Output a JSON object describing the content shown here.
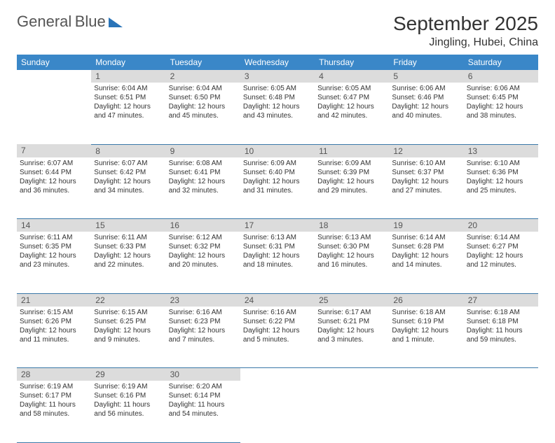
{
  "brand": {
    "name_top": "General",
    "name_bottom": "Blue"
  },
  "title": "September 2025",
  "location": "Jingling, Hubei, China",
  "colors": {
    "header_bg": "#3a87c8",
    "header_text": "#ffffff",
    "daybar_bg": "#dcdcdc",
    "daybar_text": "#555555",
    "rule": "#3a78a8",
    "brand_blue": "#2a74b8"
  },
  "weekdays": [
    "Sunday",
    "Monday",
    "Tuesday",
    "Wednesday",
    "Thursday",
    "Friday",
    "Saturday"
  ],
  "weeks": [
    [
      null,
      {
        "n": "1",
        "sr": "6:04 AM",
        "ss": "6:51 PM",
        "dl": "12 hours and 47 minutes."
      },
      {
        "n": "2",
        "sr": "6:04 AM",
        "ss": "6:50 PM",
        "dl": "12 hours and 45 minutes."
      },
      {
        "n": "3",
        "sr": "6:05 AM",
        "ss": "6:48 PM",
        "dl": "12 hours and 43 minutes."
      },
      {
        "n": "4",
        "sr": "6:05 AM",
        "ss": "6:47 PM",
        "dl": "12 hours and 42 minutes."
      },
      {
        "n": "5",
        "sr": "6:06 AM",
        "ss": "6:46 PM",
        "dl": "12 hours and 40 minutes."
      },
      {
        "n": "6",
        "sr": "6:06 AM",
        "ss": "6:45 PM",
        "dl": "12 hours and 38 minutes."
      }
    ],
    [
      {
        "n": "7",
        "sr": "6:07 AM",
        "ss": "6:44 PM",
        "dl": "12 hours and 36 minutes."
      },
      {
        "n": "8",
        "sr": "6:07 AM",
        "ss": "6:42 PM",
        "dl": "12 hours and 34 minutes."
      },
      {
        "n": "9",
        "sr": "6:08 AM",
        "ss": "6:41 PM",
        "dl": "12 hours and 32 minutes."
      },
      {
        "n": "10",
        "sr": "6:09 AM",
        "ss": "6:40 PM",
        "dl": "12 hours and 31 minutes."
      },
      {
        "n": "11",
        "sr": "6:09 AM",
        "ss": "6:39 PM",
        "dl": "12 hours and 29 minutes."
      },
      {
        "n": "12",
        "sr": "6:10 AM",
        "ss": "6:37 PM",
        "dl": "12 hours and 27 minutes."
      },
      {
        "n": "13",
        "sr": "6:10 AM",
        "ss": "6:36 PM",
        "dl": "12 hours and 25 minutes."
      }
    ],
    [
      {
        "n": "14",
        "sr": "6:11 AM",
        "ss": "6:35 PM",
        "dl": "12 hours and 23 minutes."
      },
      {
        "n": "15",
        "sr": "6:11 AM",
        "ss": "6:33 PM",
        "dl": "12 hours and 22 minutes."
      },
      {
        "n": "16",
        "sr": "6:12 AM",
        "ss": "6:32 PM",
        "dl": "12 hours and 20 minutes."
      },
      {
        "n": "17",
        "sr": "6:13 AM",
        "ss": "6:31 PM",
        "dl": "12 hours and 18 minutes."
      },
      {
        "n": "18",
        "sr": "6:13 AM",
        "ss": "6:30 PM",
        "dl": "12 hours and 16 minutes."
      },
      {
        "n": "19",
        "sr": "6:14 AM",
        "ss": "6:28 PM",
        "dl": "12 hours and 14 minutes."
      },
      {
        "n": "20",
        "sr": "6:14 AM",
        "ss": "6:27 PM",
        "dl": "12 hours and 12 minutes."
      }
    ],
    [
      {
        "n": "21",
        "sr": "6:15 AM",
        "ss": "6:26 PM",
        "dl": "12 hours and 11 minutes."
      },
      {
        "n": "22",
        "sr": "6:15 AM",
        "ss": "6:25 PM",
        "dl": "12 hours and 9 minutes."
      },
      {
        "n": "23",
        "sr": "6:16 AM",
        "ss": "6:23 PM",
        "dl": "12 hours and 7 minutes."
      },
      {
        "n": "24",
        "sr": "6:16 AM",
        "ss": "6:22 PM",
        "dl": "12 hours and 5 minutes."
      },
      {
        "n": "25",
        "sr": "6:17 AM",
        "ss": "6:21 PM",
        "dl": "12 hours and 3 minutes."
      },
      {
        "n": "26",
        "sr": "6:18 AM",
        "ss": "6:19 PM",
        "dl": "12 hours and 1 minute."
      },
      {
        "n": "27",
        "sr": "6:18 AM",
        "ss": "6:18 PM",
        "dl": "11 hours and 59 minutes."
      }
    ],
    [
      {
        "n": "28",
        "sr": "6:19 AM",
        "ss": "6:17 PM",
        "dl": "11 hours and 58 minutes."
      },
      {
        "n": "29",
        "sr": "6:19 AM",
        "ss": "6:16 PM",
        "dl": "11 hours and 56 minutes."
      },
      {
        "n": "30",
        "sr": "6:20 AM",
        "ss": "6:14 PM",
        "dl": "11 hours and 54 minutes."
      },
      null,
      null,
      null,
      null
    ]
  ],
  "labels": {
    "sunrise": "Sunrise:",
    "sunset": "Sunset:",
    "daylight": "Daylight:"
  }
}
